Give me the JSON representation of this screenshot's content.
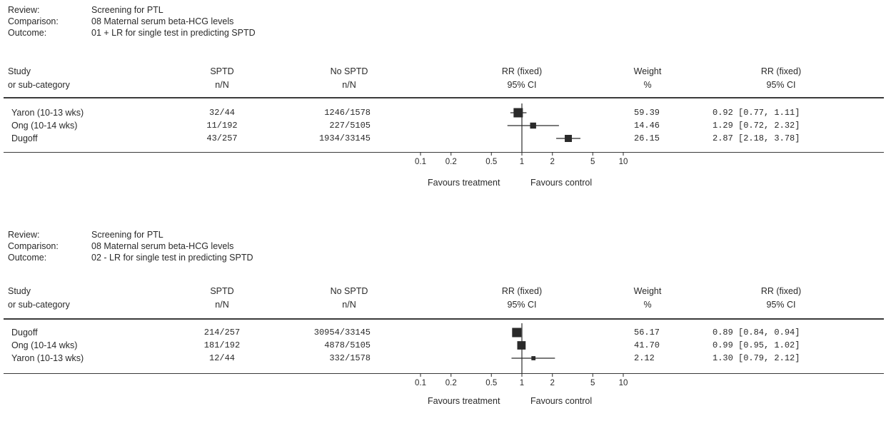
{
  "chart_data": [
    {
      "type": "forest",
      "review_label": "Review:",
      "review": "Screening for PTL",
      "comparison_label": "Comparison:",
      "comparison": "08 Maternal serum beta-HCG levels",
      "outcome_label": "Outcome:",
      "outcome": "01 + LR for single test in predicting SPTD",
      "columns": {
        "study": [
          "Study",
          "or sub-category"
        ],
        "sptd": [
          "SPTD",
          "n/N"
        ],
        "nosptd": [
          "No SPTD",
          "n/N"
        ],
        "rrplot": [
          "RR (fixed)",
          "95% CI"
        ],
        "weight": [
          "Weight",
          "%"
        ],
        "rrtext": [
          "RR (fixed)",
          "95% CI"
        ]
      },
      "rows": [
        {
          "study": "Yaron (10-13 wks)",
          "sptd": "32/44",
          "nosptd": "1246/1578",
          "rr": 0.92,
          "lo": 0.77,
          "hi": 1.11,
          "weight": "59.39",
          "ci_text": "0.92 [0.77, 1.11]"
        },
        {
          "study": "Ong (10-14 wks)",
          "sptd": "11/192",
          "nosptd": "227/5105",
          "rr": 1.29,
          "lo": 0.72,
          "hi": 2.32,
          "weight": "14.46",
          "ci_text": "1.29 [0.72, 2.32]"
        },
        {
          "study": "Dugoff",
          "sptd": "43/257",
          "nosptd": "1934/33145",
          "rr": 2.87,
          "lo": 2.18,
          "hi": 3.78,
          "weight": "26.15",
          "ci_text": "2.87 [2.18, 3.78]"
        }
      ],
      "x_scale": "log",
      "xlim": [
        0.1,
        10
      ],
      "ticks": [
        0.1,
        0.2,
        0.5,
        1,
        2,
        5,
        10
      ],
      "tick_labels": [
        "0.1",
        "0.2",
        "0.5",
        "1",
        "2",
        "5",
        "10"
      ],
      "favours_left": "Favours treatment",
      "favours_right": "Favours control"
    },
    {
      "type": "forest",
      "review_label": "Review:",
      "review": "Screening for PTL",
      "comparison_label": "Comparison:",
      "comparison": "08 Maternal serum beta-HCG levels",
      "outcome_label": "Outcome:",
      "outcome": "02 - LR for single test in predicting SPTD",
      "columns": {
        "study": [
          "Study",
          "or sub-category"
        ],
        "sptd": [
          "SPTD",
          "n/N"
        ],
        "nosptd": [
          "No SPTD",
          "n/N"
        ],
        "rrplot": [
          "RR (fixed)",
          "95% CI"
        ],
        "weight": [
          "Weight",
          "%"
        ],
        "rrtext": [
          "RR (fixed)",
          "95% CI"
        ]
      },
      "rows": [
        {
          "study": "Dugoff",
          "sptd": "214/257",
          "nosptd": "30954/33145",
          "rr": 0.89,
          "lo": 0.84,
          "hi": 0.94,
          "weight": "56.17",
          "ci_text": "0.89 [0.84, 0.94]"
        },
        {
          "study": "Ong (10-14 wks)",
          "sptd": "181/192",
          "nosptd": "4878/5105",
          "rr": 0.99,
          "lo": 0.95,
          "hi": 1.02,
          "weight": "41.70",
          "ci_text": "0.99 [0.95, 1.02]"
        },
        {
          "study": "Yaron (10-13 wks)",
          "sptd": "12/44",
          "nosptd": "332/1578",
          "rr": 1.3,
          "lo": 0.79,
          "hi": 2.12,
          "weight": "2.12",
          "ci_text": "1.30 [0.79, 2.12]"
        }
      ],
      "x_scale": "log",
      "xlim": [
        0.1,
        10
      ],
      "ticks": [
        0.1,
        0.2,
        0.5,
        1,
        2,
        5,
        10
      ],
      "tick_labels": [
        "0.1",
        "0.2",
        "0.5",
        "1",
        "2",
        "5",
        "10"
      ],
      "favours_left": "Favours treatment",
      "favours_right": "Favours control"
    }
  ]
}
